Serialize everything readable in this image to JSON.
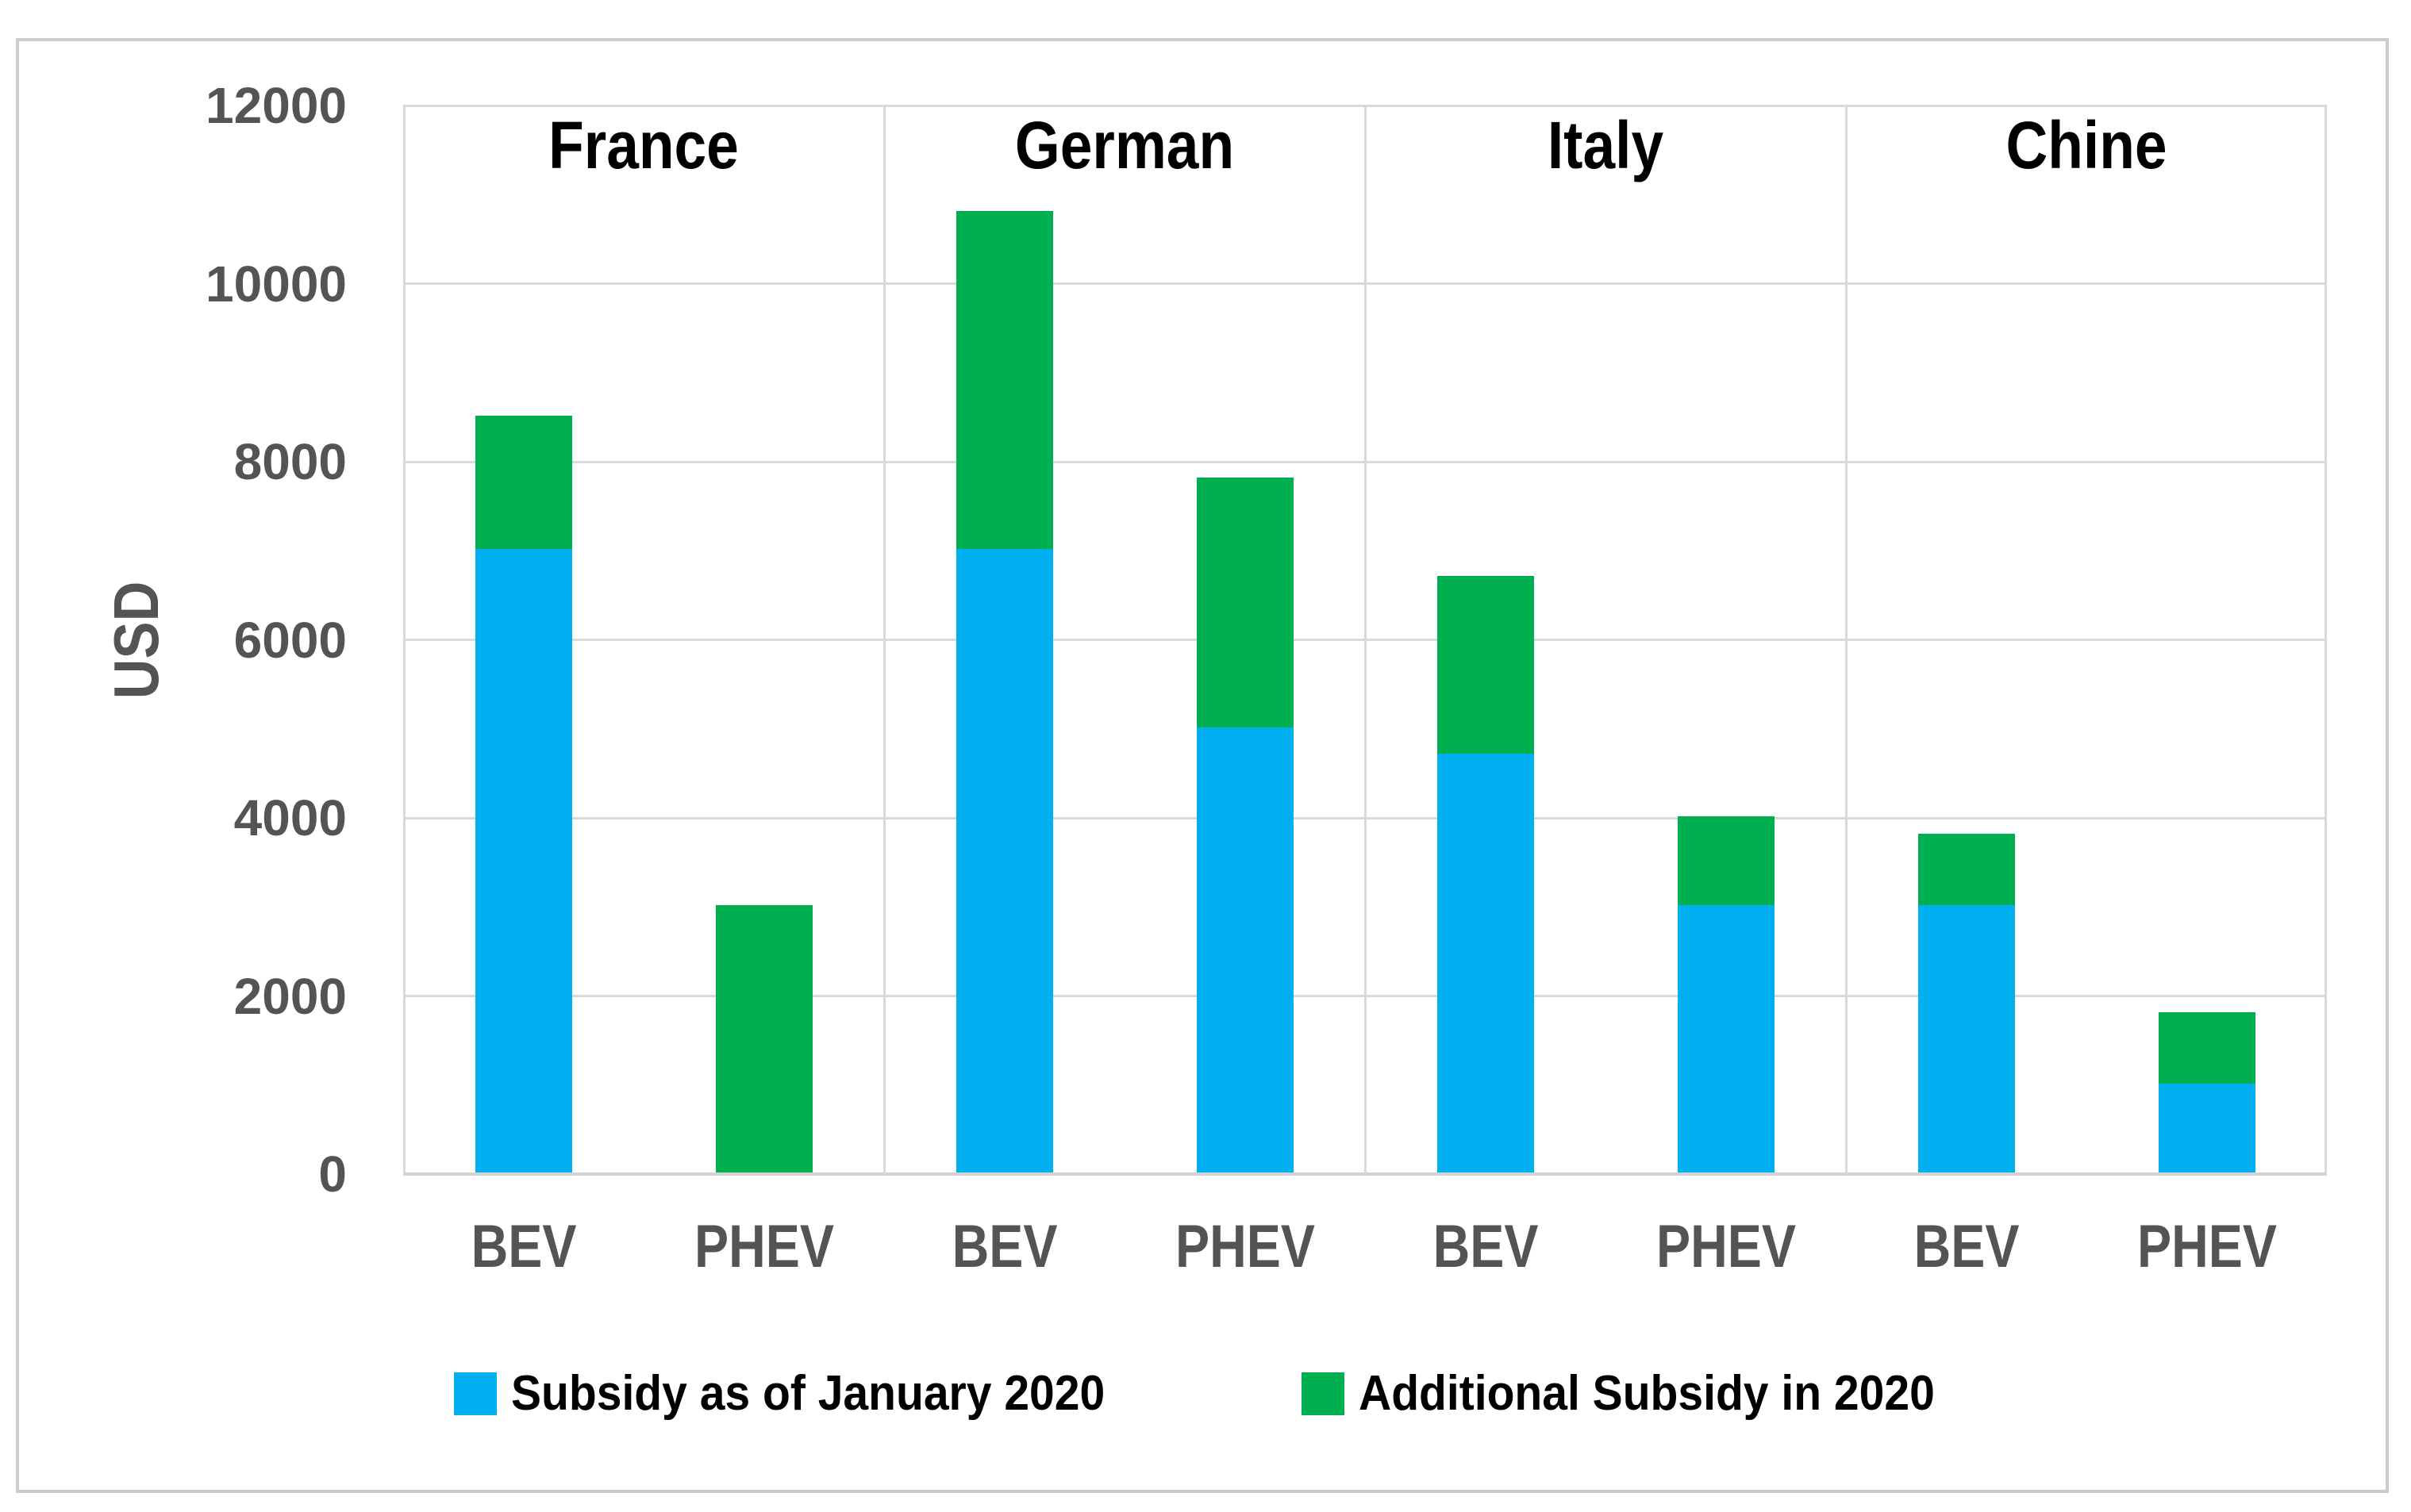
{
  "chart_data": {
    "type": "bar",
    "stacked": true,
    "title": "",
    "ylabel": "USD",
    "ylim": [
      0,
      12000
    ],
    "yticks": [
      0,
      2000,
      4000,
      6000,
      8000,
      10000,
      12000
    ],
    "grid": true,
    "legend_position": "bottom",
    "legend": [
      {
        "label": "Subsidy as of January 2020",
        "color": "#00b0f0"
      },
      {
        "label": "Additional Subsidy in 2020",
        "color": "#00b050"
      }
    ],
    "groups": [
      {
        "label": "France",
        "bars": [
          {
            "category": "BEV",
            "values": [
              7000,
              1500
            ]
          },
          {
            "category": "PHEV",
            "values": [
              0,
              3000
            ]
          }
        ]
      },
      {
        "label": "German",
        "bars": [
          {
            "category": "BEV",
            "values": [
              7000,
              3800
            ]
          },
          {
            "category": "PHEV",
            "values": [
              5000,
              2800
            ]
          }
        ]
      },
      {
        "label": "Italy",
        "bars": [
          {
            "category": "BEV",
            "values": [
              4700,
              2000
            ]
          },
          {
            "category": "PHEV",
            "values": [
              3000,
              1000
            ]
          }
        ]
      },
      {
        "label": "Chine",
        "bars": [
          {
            "category": "BEV",
            "values": [
              3000,
              800
            ]
          },
          {
            "category": "PHEV",
            "values": [
              1000,
              800
            ]
          }
        ]
      }
    ]
  }
}
